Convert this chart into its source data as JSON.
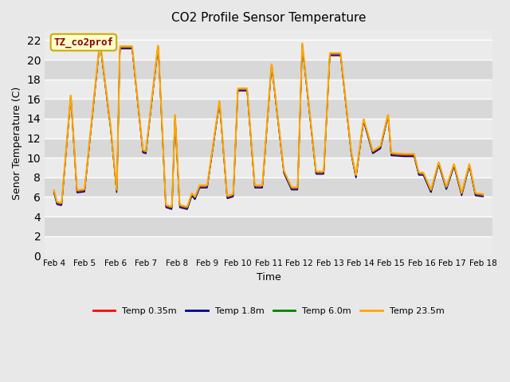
{
  "title": "CO2 Profile Sensor Temperature",
  "xlabel": "Time",
  "ylabel": "Senor Temperature (C)",
  "ylim": [
    0,
    23
  ],
  "yticks": [
    0,
    2,
    4,
    6,
    8,
    10,
    12,
    14,
    16,
    18,
    20,
    22
  ],
  "annotation_text": "TZ_co2prof",
  "annotation_color": "#8b0000",
  "annotation_bg": "#ffffcc",
  "annotation_border": "#ccaa00",
  "fig_bg": "#e8e8e8",
  "plot_bg": "#e0e0e0",
  "band_light": "#ebebeb",
  "band_dark": "#d8d8d8",
  "series_colors": [
    "#ff0000",
    "#00008b",
    "#008000",
    "#ffa500"
  ],
  "series_labels": [
    "Temp 0.35m",
    "Temp 1.8m",
    "Temp 6.0m",
    "Temp 23.5m"
  ],
  "x_labels": [
    "Feb 4",
    "Feb 5",
    "Feb 6",
    "Feb 7",
    "Feb 8",
    "Feb 9",
    "Feb 10",
    "Feb 11",
    "Feb 12",
    "Feb 13",
    "Feb 14",
    "Feb 15",
    "Feb 16",
    "Feb 17",
    "Feb 18"
  ],
  "key_points_x": [
    0.0,
    0.1,
    0.25,
    0.55,
    0.75,
    1.0,
    1.5,
    1.85,
    2.05,
    2.15,
    2.55,
    2.9,
    3.0,
    3.4,
    3.65,
    3.85,
    3.95,
    4.1,
    4.35,
    4.5,
    4.6,
    4.75,
    5.0,
    5.4,
    5.65,
    5.85,
    6.0,
    6.3,
    6.55,
    6.8,
    7.1,
    7.5,
    7.75,
    7.95,
    8.1,
    8.55,
    8.8,
    9.0,
    9.35,
    9.7,
    9.85,
    10.1,
    10.4,
    10.65,
    10.9,
    11.0,
    11.4,
    11.75,
    11.9,
    12.05,
    12.3,
    12.55,
    12.8,
    13.05,
    13.3,
    13.55,
    13.75,
    14.0
  ],
  "key_points_y": [
    6.5,
    5.3,
    5.2,
    16.3,
    6.5,
    6.6,
    21.8,
    13.0,
    6.4,
    21.2,
    21.2,
    10.6,
    10.5,
    21.5,
    5.0,
    4.8,
    14.3,
    5.0,
    4.8,
    6.2,
    5.8,
    7.0,
    7.0,
    15.7,
    5.9,
    6.1,
    16.9,
    16.9,
    7.0,
    7.0,
    19.5,
    8.5,
    6.8,
    6.8,
    21.5,
    8.4,
    8.4,
    20.5,
    20.5,
    10.4,
    8.0,
    13.8,
    10.5,
    11.0,
    14.3,
    10.3,
    10.2,
    10.2,
    8.3,
    8.3,
    6.5,
    9.4,
    6.8,
    9.2,
    6.2,
    9.2,
    6.2,
    6.1
  ]
}
